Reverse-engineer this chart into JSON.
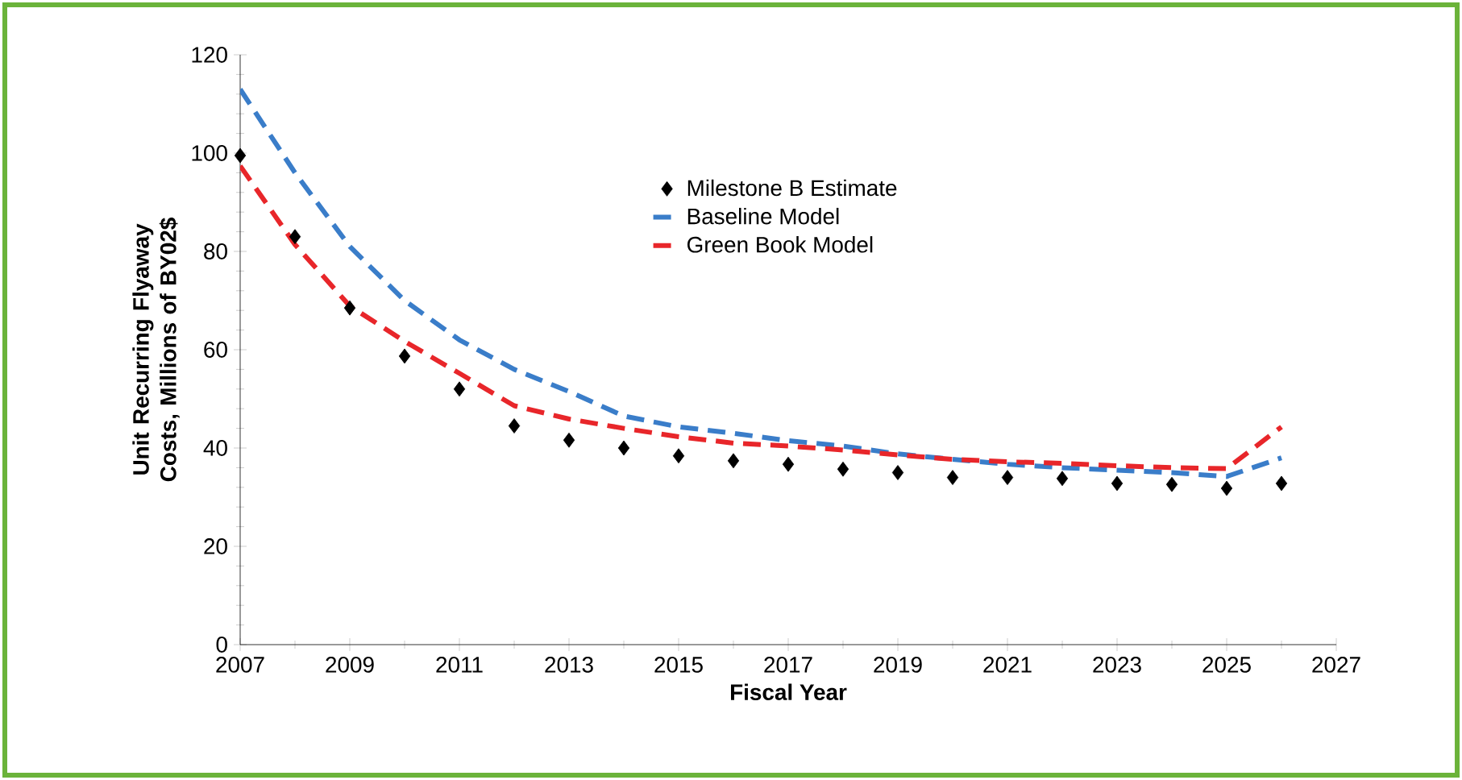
{
  "chart_data": {
    "type": "line",
    "xlabel": "Fiscal Year",
    "ylabel": "Unit Recurring Flyaway Costs, Millions of BY02$",
    "x": [
      2007,
      2008,
      2009,
      2010,
      2011,
      2012,
      2013,
      2014,
      2015,
      2016,
      2017,
      2018,
      2019,
      2020,
      2021,
      2022,
      2023,
      2024,
      2025,
      2026
    ],
    "series": [
      {
        "name": "Milestone B Estimate",
        "type": "scatter",
        "marker": "diamond",
        "color": "#000000",
        "values": [
          99.5,
          83,
          68.5,
          58.7,
          52,
          44.5,
          41.6,
          40,
          38.4,
          37.4,
          36.7,
          35.7,
          35,
          34,
          34,
          33.8,
          32.8,
          32.6,
          31.8,
          32.8
        ]
      },
      {
        "name": "Baseline Model",
        "line_style": "dashed",
        "color": "#3a7dc9",
        "values": [
          113,
          96,
          81,
          70,
          62,
          56,
          51.5,
          46.5,
          44.3,
          43,
          41.5,
          40.4,
          38.8,
          37.7,
          36.7,
          36,
          35.5,
          35,
          34.2,
          38
        ]
      },
      {
        "name": "Green Book Model",
        "line_style": "dashed",
        "color": "#e8262a",
        "values": [
          97.4,
          81.4,
          68.9,
          61.7,
          55.2,
          48.6,
          45.9,
          44,
          42.3,
          41,
          40.4,
          39.6,
          38.6,
          37.7,
          37.2,
          36.9,
          36.4,
          36,
          35.8,
          44.3
        ]
      }
    ],
    "xlim": [
      2007,
      2027
    ],
    "xticks": [
      2007,
      2009,
      2011,
      2013,
      2015,
      2017,
      2019,
      2021,
      2023,
      2025,
      2027
    ],
    "ylim": [
      0,
      120
    ],
    "yticks": [
      0,
      20,
      40,
      60,
      80,
      100,
      120
    ],
    "grid": false,
    "legend": "top"
  }
}
